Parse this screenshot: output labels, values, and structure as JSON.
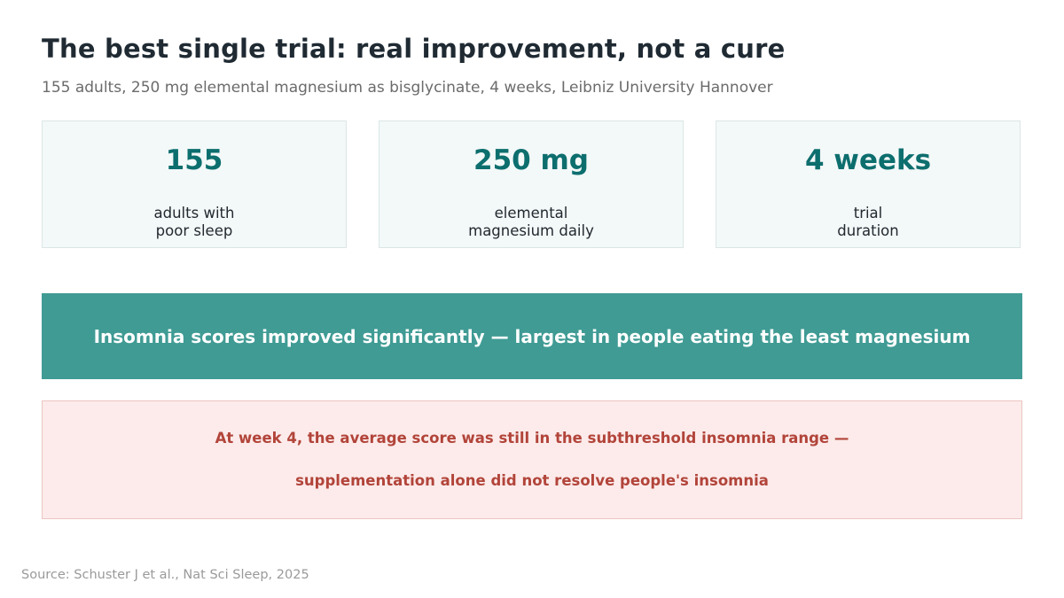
{
  "header": {
    "title": "The best single trial: real improvement, not a cure",
    "subtitle": "155 adults, 250 mg elemental magnesium as bisglycinate, 4 weeks, Leibniz University Hannover"
  },
  "stats": [
    {
      "value": "155",
      "label_line1": "adults with",
      "label_line2": "poor sleep"
    },
    {
      "value": "250 mg",
      "label_line1": "elemental",
      "label_line2": "magnesium daily"
    },
    {
      "value": "4 weeks",
      "label_line1": "trial",
      "label_line2": "duration"
    }
  ],
  "finding": {
    "text": "Insomnia scores improved significantly — largest in people eating the least magnesium"
  },
  "caveat": {
    "line1": "At week 4, the average score was still in the subthreshold insomnia range —",
    "line2": "supplementation alone did not resolve people's insomnia"
  },
  "source": {
    "text": "Source: Schuster J et al., Nat Sci Sleep, 2025"
  },
  "colors": {
    "accent_teal": "#0d6e6e",
    "banner_teal": "#3f9b94",
    "caveat_red": "#b2443a",
    "caveat_bg": "#fcebea",
    "card_bg": "#f3f8f8"
  }
}
